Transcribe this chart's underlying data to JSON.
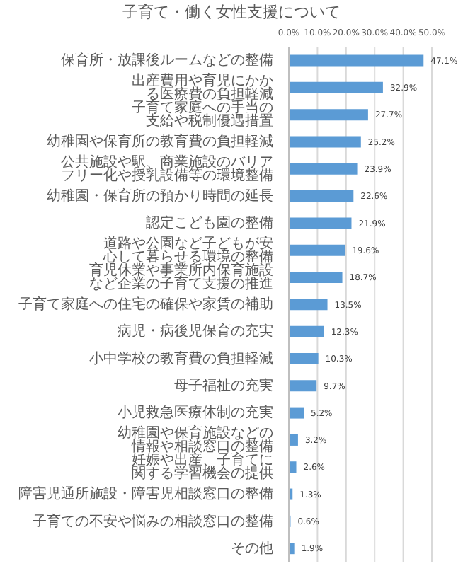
{
  "chart_data": {
    "type": "bar",
    "orientation": "horizontal",
    "title": "子育て・働く女性支援について",
    "categories": [
      "保育所・放課後ルームなどの整備",
      "出産費用や育児にかかる医療費の負担軽減",
      "子育て家庭への手当の支給や税制優遇措置",
      "幼稚園や保育所の教育費の負担軽減",
      "公共施設や駅、商業施設のバリアフリー化や授乳設備等の環境整備",
      "幼稚園・保育所の預かり時間の延長",
      "認定こども園の整備",
      "道路や公園など子どもが安心して暮らせる環境の整備",
      "育児休業や事業所内保育施設など企業の子育て支援の推進",
      "子育て家庭への住宅の確保や家賃の補助",
      "病児・病後児保育の充実",
      "小中学校の教育費の負担軽減",
      "母子福祉の充実",
      "小児救急医療体制の充実",
      "幼稚園や保育施設などの情報や相談窓口の整備",
      "妊娠や出産、子育てに関する学習機会の提供",
      "障害児通所施設・障害児相談窓口の整備",
      "子育ての不安や悩みの相談窓口の整備",
      "その他"
    ],
    "values": [
      47.1,
      32.9,
      27.7,
      25.2,
      23.9,
      22.6,
      21.9,
      19.6,
      18.7,
      13.5,
      12.3,
      10.3,
      9.7,
      5.2,
      3.2,
      2.6,
      1.3,
      0.6,
      1.9
    ],
    "value_labels": [
      "47.1%",
      "32.9%",
      "27.7%",
      "25.2%",
      "23.9%",
      "22.6%",
      "21.9%",
      "19.6%",
      "18.7%",
      "13.5%",
      "12.3%",
      "10.3%",
      "9.7%",
      "5.2%",
      "3.2%",
      "2.6%",
      "1.3%",
      "0.6%",
      "1.9%"
    ],
    "color": "#5b9bd5",
    "xlim": [
      0,
      50
    ],
    "xticks": [
      {
        "value": 0,
        "label": "0.0%"
      },
      {
        "value": 10,
        "label": "10.0%"
      },
      {
        "value": 20,
        "label": "20.0%"
      },
      {
        "value": 30,
        "label": "30.0%"
      },
      {
        "value": 40,
        "label": "40.0%"
      },
      {
        "value": 50,
        "label": "50.0%"
      }
    ],
    "grid": "x"
  }
}
